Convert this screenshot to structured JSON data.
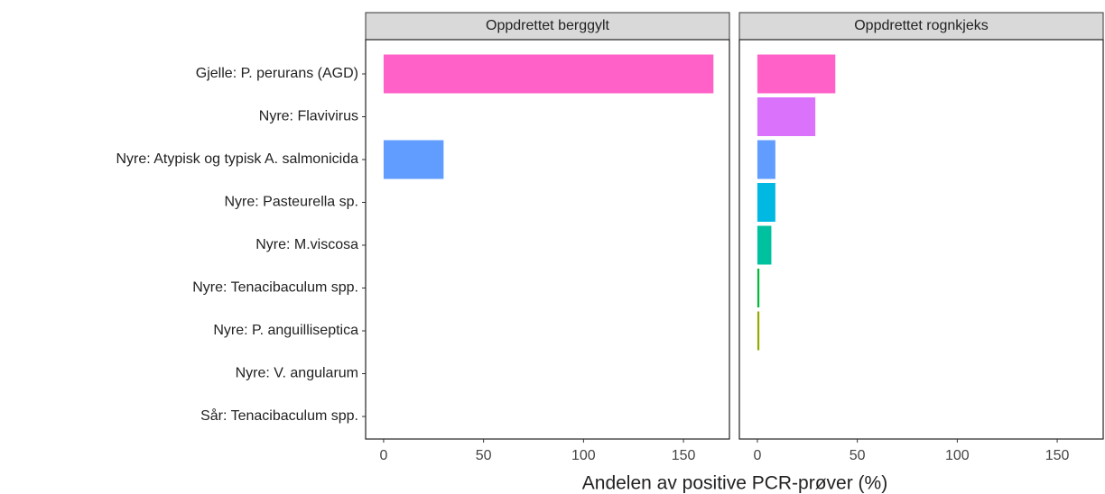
{
  "chart_data": {
    "type": "bar",
    "orientation": "horizontal",
    "categories": [
      "Gjelle: P. perurans (AGD)",
      "Nyre: Flavivirus",
      "Nyre: Atypisk og typisk A. salmonicida",
      "Nyre: Pasteurella sp.",
      "Nyre: M.viscosa",
      "Nyre: Tenacibaculum spp.",
      "Nyre: P. anguilliseptica",
      "Nyre: V. angularum",
      "Sår: Tenacibaculum spp."
    ],
    "colors": [
      "#ff61c9",
      "#db72fb",
      "#619cff",
      "#00b9e3",
      "#00c19f",
      "#00ba38",
      "#93aa00",
      "#d39200",
      "#f8766d"
    ],
    "xlabel": "Andelen av positive PCR-prøver (%)",
    "xlim": [
      -9,
      173
    ],
    "xticks": [
      0,
      50,
      100,
      150
    ],
    "panels": [
      {
        "title": "Oppdrettet berggylt",
        "values": [
          165,
          0,
          30,
          0,
          0,
          0,
          0,
          0,
          0
        ]
      },
      {
        "title": "Oppdrettet rognkjeks",
        "values": [
          39,
          29,
          9,
          9,
          7,
          1,
          1,
          0,
          0
        ]
      }
    ]
  }
}
